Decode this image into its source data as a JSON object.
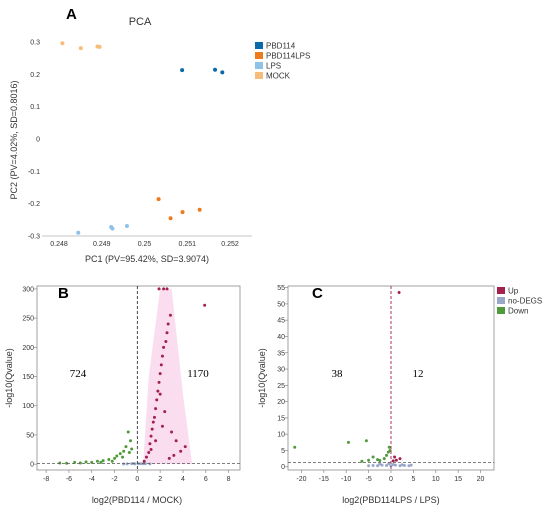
{
  "chart_data": [
    {
      "type": "scatter",
      "panel_label": "A",
      "title": "PCA",
      "xlabel": "PC1 (PV=95.42%, SD=3.9074)",
      "ylabel": "PC2 (PV=4.02%, SD=0.8016)",
      "xlim": [
        0.248,
        0.252
      ],
      "ylim": [
        -0.3,
        0.3
      ],
      "xticks": [
        0.248,
        0.249,
        0.25,
        0.251,
        0.252
      ],
      "xtick_labels": [
        "0.248",
        "0.249",
        "0.25",
        "0.251",
        "0.252"
      ],
      "yticks": [
        0.3,
        0.2,
        0.1,
        0,
        -0.1,
        -0.2,
        -0.3
      ],
      "ytick_labels": [
        "0.3",
        "0.2",
        "0.1",
        "0",
        "-0.1",
        "-0.2",
        "-0.3"
      ],
      "grid": false,
      "legend_position": "top-right",
      "series": [
        {
          "name": "PBD114",
          "color": "#0a6aa8",
          "points": [
            [
              0.25088,
              0.213
            ],
            [
              0.25165,
              0.214
            ],
            [
              0.25182,
              0.206
            ]
          ]
        },
        {
          "name": "PBD114LPS",
          "color": "#ee7a1e",
          "points": [
            [
              0.25033,
              -0.186
            ],
            [
              0.25061,
              -0.245
            ],
            [
              0.25089,
              -0.226
            ],
            [
              0.25129,
              -0.219
            ]
          ]
        },
        {
          "name": "LPS",
          "color": "#8ec2e6",
          "points": [
            [
              0.24845,
              -0.29
            ],
            [
              0.24922,
              -0.272
            ],
            [
              0.24925,
              -0.277
            ],
            [
              0.24959,
              -0.269
            ]
          ]
        },
        {
          "name": "MOCK",
          "color": "#f8bc7a",
          "points": [
            [
              0.24808,
              0.296
            ],
            [
              0.24851,
              0.281
            ],
            [
              0.2489,
              0.286
            ],
            [
              0.24895,
              0.285
            ]
          ]
        }
      ]
    },
    {
      "type": "scatter",
      "panel_label": "B",
      "xlabel": "log2(PBD114 / MOCK)",
      "ylabel": "-log10(Qvalue)",
      "xlim": [
        -8.8,
        9.0
      ],
      "ylim": [
        -10,
        305
      ],
      "xticks": [
        -8,
        -6,
        -4,
        -2,
        0,
        2,
        4,
        6,
        8
      ],
      "xtick_labels": [
        "-8",
        "-6",
        "-4",
        "-2",
        "0",
        "2",
        "4",
        "6",
        "8"
      ],
      "yticks": [
        0,
        50,
        100,
        150,
        200,
        250,
        300
      ],
      "ytick_labels": [
        "0",
        "50",
        "100",
        "150",
        "200",
        "250",
        "300"
      ],
      "threshold_x": 0,
      "threshold_y": 1.3,
      "down_count": "724",
      "up_count": "1170",
      "grid": false,
      "series": [
        {
          "name": "Up",
          "color": "#a3214f"
        },
        {
          "name": "no-DEGS",
          "color": "#9aa7c9"
        },
        {
          "name": "Down",
          "color": "#4f9a3a"
        }
      ],
      "up_points": [
        [
          0.6,
          5
        ],
        [
          0.8,
          12
        ],
        [
          1.0,
          20
        ],
        [
          1.1,
          35
        ],
        [
          1.2,
          48
        ],
        [
          1.3,
          60
        ],
        [
          1.4,
          72
        ],
        [
          1.5,
          80
        ],
        [
          1.6,
          95
        ],
        [
          1.7,
          110
        ],
        [
          1.8,
          125
        ],
        [
          1.9,
          140
        ],
        [
          2.0,
          155
        ],
        [
          2.1,
          170
        ],
        [
          2.2,
          185
        ],
        [
          2.3,
          200
        ],
        [
          2.5,
          210
        ],
        [
          2.6,
          225
        ],
        [
          2.7,
          240
        ],
        [
          2.9,
          255
        ],
        [
          1.9,
          300
        ],
        [
          2.3,
          300
        ],
        [
          2.6,
          300
        ],
        [
          5.9,
          272
        ],
        [
          4.2,
          30
        ],
        [
          3.8,
          22
        ],
        [
          3.2,
          15
        ],
        [
          2.8,
          10
        ],
        [
          1.6,
          40
        ],
        [
          1.2,
          25
        ],
        [
          2.2,
          65
        ],
        [
          2.4,
          90
        ],
        [
          2.0,
          120
        ],
        [
          3.0,
          55
        ],
        [
          3.4,
          40
        ]
      ],
      "down_points": [
        [
          -6.8,
          2
        ],
        [
          -6.2,
          1.5
        ],
        [
          -5.5,
          3
        ],
        [
          -5.0,
          2
        ],
        [
          -4.5,
          4
        ],
        [
          -4.0,
          3
        ],
        [
          -3.5,
          5
        ],
        [
          -3.0,
          6
        ],
        [
          -2.5,
          8
        ],
        [
          -2.0,
          10
        ],
        [
          -1.8,
          14
        ],
        [
          -1.5,
          18
        ],
        [
          -1.2,
          22
        ],
        [
          -1.0,
          30
        ],
        [
          -0.8,
          55
        ],
        [
          -0.6,
          40
        ],
        [
          -1.3,
          12
        ],
        [
          -2.2,
          5
        ],
        [
          -3.2,
          3
        ],
        [
          -0.5,
          26
        ],
        [
          -0.7,
          20
        ]
      ],
      "nodeg_points": [
        [
          -0.9,
          0.5
        ],
        [
          -0.5,
          1
        ],
        [
          -0.2,
          0.4
        ],
        [
          0.1,
          0.7
        ],
        [
          0.3,
          1
        ],
        [
          0.5,
          0.6
        ],
        [
          -0.3,
          0.9
        ],
        [
          0.7,
          0.8
        ],
        [
          -1.2,
          0.3
        ],
        [
          1.1,
          0.5
        ]
      ]
    },
    {
      "type": "scatter",
      "panel_label": "C",
      "xlabel": "log2(PBD114LPS / LPS)",
      "ylabel": "-log10(Qvalue)",
      "xlim": [
        -23,
        23
      ],
      "ylim": [
        -1,
        55.5
      ],
      "xticks": [
        -20,
        -15,
        -10,
        -5,
        0,
        5,
        10,
        15,
        20
      ],
      "xtick_labels": [
        "-20",
        "-15",
        "-10",
        "-5",
        "0",
        "5",
        "10",
        "15",
        "20"
      ],
      "yticks": [
        0,
        5,
        10,
        15,
        20,
        25,
        30,
        35,
        40,
        45,
        50,
        55
      ],
      "ytick_labels": [
        "0",
        "5",
        "10",
        "15",
        "20",
        "25",
        "30",
        "35",
        "40",
        "45",
        "50",
        "55"
      ],
      "threshold_x": 0,
      "threshold_y": 1.3,
      "down_count": "38",
      "up_count": "12",
      "legend_position": "top-right",
      "grid": false,
      "series": [
        {
          "name": "Up",
          "color": "#a3214f"
        },
        {
          "name": "no-DEGS",
          "color": "#9aa7c9"
        },
        {
          "name": "Down",
          "color": "#4f9a3a"
        }
      ],
      "up_points": [
        [
          1.8,
          53.5
        ],
        [
          0.8,
          3
        ],
        [
          1.2,
          2
        ],
        [
          2.0,
          2.5
        ],
        [
          0.5,
          1.8
        ]
      ],
      "down_points": [
        [
          -21.5,
          6
        ],
        [
          -9.5,
          7.5
        ],
        [
          -5.5,
          8
        ],
        [
          -5,
          2
        ],
        [
          -4,
          3
        ],
        [
          -3,
          2.2
        ],
        [
          -2.5,
          1.9
        ],
        [
          -1.5,
          2.5
        ],
        [
          -1,
          3.5
        ],
        [
          -0.6,
          4.5
        ],
        [
          -0.4,
          6
        ],
        [
          -0.2,
          5
        ],
        [
          -6.5,
          1.7
        ]
      ],
      "nodeg_points": [
        [
          -5,
          0.3
        ],
        [
          -4,
          0.4
        ],
        [
          -3,
          0.3
        ],
        [
          -2,
          0.5
        ],
        [
          -1,
          0.4
        ],
        [
          0,
          0.3
        ],
        [
          1,
          0.5
        ],
        [
          2,
          0.3
        ],
        [
          3,
          0.4
        ],
        [
          4,
          0.3
        ],
        [
          -2.5,
          0.8
        ],
        [
          2.5,
          0.6
        ],
        [
          -0.5,
          0.9
        ],
        [
          0.5,
          0.7
        ],
        [
          4.5,
          0.5
        ]
      ]
    }
  ]
}
